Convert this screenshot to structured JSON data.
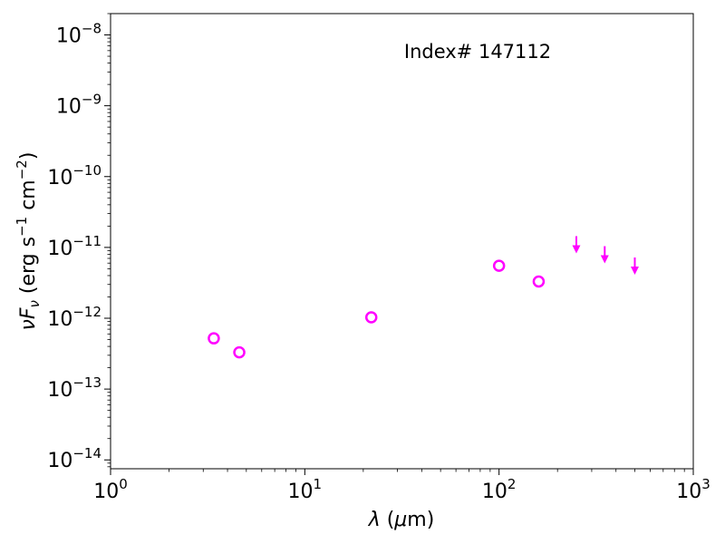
{
  "chart_data": {
    "type": "scatter",
    "annotation": "Index# 147112",
    "xlabel": {
      "symbol": "λ",
      "unit": " (",
      "unit_mu": "μ",
      "unit_end": "m)"
    },
    "ylabel": {
      "nu": "ν",
      "F": "F",
      "sub": "ν",
      "text1": " (erg s",
      "exp1": "−1",
      "text2": " cm",
      "exp2": "−2",
      "text3": ")"
    },
    "xscale": "log",
    "yscale": "log",
    "xlim": [
      1,
      1000
    ],
    "ylim": [
      7.5e-15,
      2e-08
    ],
    "grid": false,
    "x_ticks": [
      {
        "base": "10",
        "exp": "0",
        "value": 1
      },
      {
        "base": "10",
        "exp": "1",
        "value": 10
      },
      {
        "base": "10",
        "exp": "2",
        "value": 100
      },
      {
        "base": "10",
        "exp": "3",
        "value": 1000
      }
    ],
    "y_ticks": [
      {
        "base": "10",
        "exp": "−14",
        "value": 1e-14
      },
      {
        "base": "10",
        "exp": "−13",
        "value": 1e-13
      },
      {
        "base": "10",
        "exp": "−12",
        "value": 1e-12
      },
      {
        "base": "10",
        "exp": "−11",
        "value": 1e-11
      },
      {
        "base": "10",
        "exp": "−10",
        "value": 1e-10
      },
      {
        "base": "10",
        "exp": "−9",
        "value": 1e-09
      },
      {
        "base": "10",
        "exp": "−8",
        "value": 1e-08
      }
    ],
    "detections": [
      {
        "x": 3.4,
        "y": 5.2e-13
      },
      {
        "x": 4.6,
        "y": 3.3e-13
      },
      {
        "x": 22,
        "y": 1.03e-12
      },
      {
        "x": 100,
        "y": 5.5e-12
      },
      {
        "x": 160,
        "y": 3.3e-12
      }
    ],
    "upper_limits": [
      {
        "x": 250,
        "y": 9e-12
      },
      {
        "x": 350,
        "y": 6.5e-12
      },
      {
        "x": 500,
        "y": 4.5e-12
      }
    ],
    "marker_color": "#ff00ff"
  }
}
